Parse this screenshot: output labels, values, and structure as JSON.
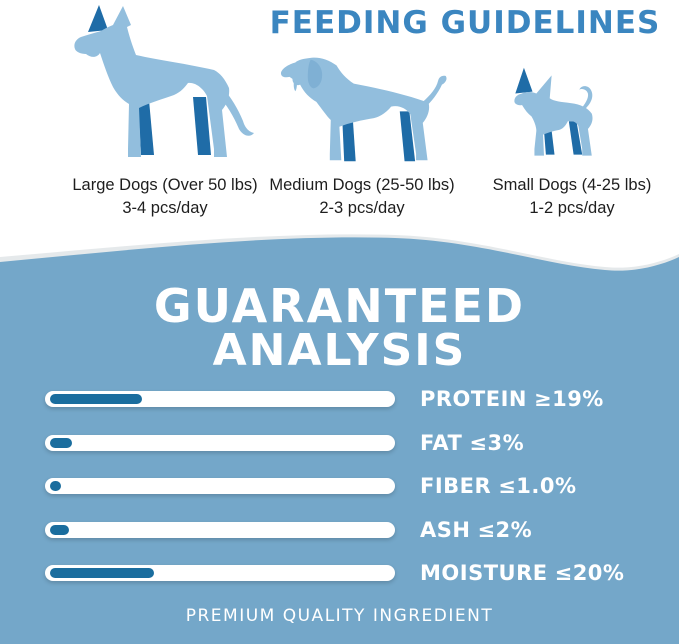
{
  "feeding": {
    "title": "FEEDING GUIDELINES",
    "sizes": [
      {
        "name": "Large Dogs (Over 50 lbs)",
        "amount": "3-4 pcs/day"
      },
      {
        "name": "Medium Dogs (25-50 lbs)",
        "amount": "2-3 pcs/day"
      },
      {
        "name": "Small Dogs (4-25 lbs)",
        "amount": "1-2 pcs/day"
      }
    ]
  },
  "analysis": {
    "title_line1": "GUARANTEED",
    "title_line2": "ANALYSIS",
    "rows": [
      {
        "label": "PROTEIN",
        "value": "≥19%",
        "fill_pct": 27
      },
      {
        "label": "FAT",
        "value": "≤3%",
        "fill_pct": 6.5
      },
      {
        "label": "FIBER",
        "value": "≤1.0%",
        "fill_pct": 3.2
      },
      {
        "label": "ASH",
        "value": "≤2%",
        "fill_pct": 5.7
      },
      {
        "label": "MOISTURE",
        "value": "≤20%",
        "fill_pct": 30.5
      }
    ],
    "footer": "PREMIUM QUALITY INGREDIENT"
  },
  "colors": {
    "title_blue": "#3b86c0",
    "dog_light_blue": "#92bedd",
    "dog_dark_blue": "#1f6ca7",
    "section_background": "#74a7c9",
    "bar_track": "#ffffff",
    "bar_fill": "#1a6d9e",
    "caption_text": "#1e1e1e"
  },
  "chart_data": {
    "type": "bar",
    "orientation": "horizontal",
    "title": "GUARANTEED ANALYSIS",
    "categories": [
      "PROTEIN",
      "FAT",
      "FIBER",
      "ASH",
      "MOISTURE"
    ],
    "values": [
      19,
      3,
      1.0,
      2,
      20
    ],
    "comparators": [
      "≥",
      "≤",
      "≤",
      "≤",
      "≤"
    ],
    "bar_fill_fractions": [
      0.27,
      0.065,
      0.032,
      0.057,
      0.305
    ],
    "value_labels": [
      "≥19%",
      "≤3%",
      "≤1.0%",
      "≤2%",
      "≤20%"
    ],
    "legend": "none",
    "grid": false
  }
}
